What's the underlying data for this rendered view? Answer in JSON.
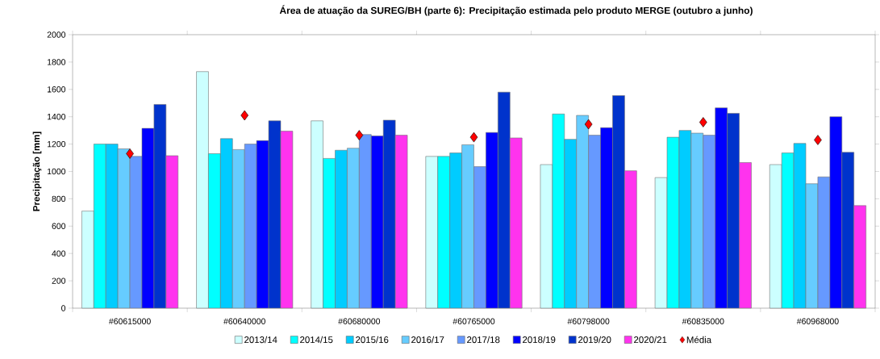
{
  "chart_data": {
    "type": "bar",
    "title": "Área de atuação da SUREG/BH (parte 6): Precipitação estimada pelo produto MERGE (outubro a junho)",
    "ylabel": "Precipitação [mm]",
    "categories": [
      "#60615000",
      "#60640000",
      "#60680000",
      "#60765000",
      "#60798000",
      "#60835000",
      "#60968000"
    ],
    "series": [
      {
        "name": "2013/14",
        "color": "#ccffff",
        "values": [
          710,
          1730,
          1370,
          1110,
          1050,
          955,
          1050
        ]
      },
      {
        "name": "2014/15",
        "color": "#00ffff",
        "values": [
          1200,
          1130,
          1095,
          1110,
          1420,
          1250,
          1135
        ]
      },
      {
        "name": "2015/16",
        "color": "#00ccff",
        "values": [
          1200,
          1240,
          1155,
          1135,
          1235,
          1300,
          1205
        ]
      },
      {
        "name": "2016/17",
        "color": "#66ccff",
        "values": [
          1165,
          1160,
          1170,
          1195,
          1410,
          1280,
          910
        ]
      },
      {
        "name": "2017/18",
        "color": "#6699ff",
        "values": [
          1110,
          1200,
          1270,
          1035,
          1265,
          1265,
          960
        ]
      },
      {
        "name": "2018/19",
        "color": "#0000ff",
        "values": [
          1315,
          1225,
          1260,
          1285,
          1320,
          1465,
          1400
        ]
      },
      {
        "name": "2019/20",
        "color": "#0033cc",
        "values": [
          1490,
          1370,
          1375,
          1580,
          1555,
          1425,
          1140
        ]
      },
      {
        "name": "2020/21",
        "color": "#ff33ee",
        "values": [
          1115,
          1295,
          1265,
          1245,
          1005,
          1065,
          750
        ]
      },
      {
        "name": "Média",
        "type": "scatter",
        "marker": "diamond",
        "color": "#ff0000",
        "values": [
          1130,
          1410,
          1265,
          1250,
          1345,
          1360,
          1230
        ]
      }
    ],
    "ylim": [
      0,
      2000
    ],
    "yticks": [
      0,
      200,
      400,
      600,
      800,
      1000,
      1200,
      1400,
      1600,
      1800,
      2000
    ],
    "grid": false,
    "legend": "bottom"
  }
}
